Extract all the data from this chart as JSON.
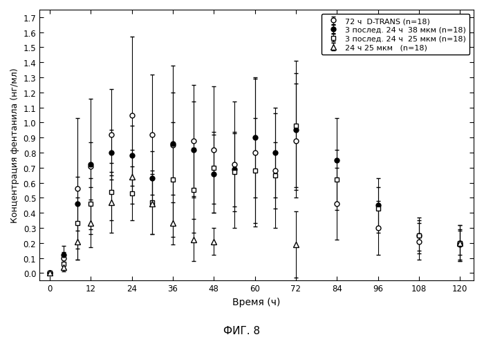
{
  "title": "ФИГ. 8",
  "xlabel": "Время (ч)",
  "ylabel": "Концентрация фентанила (нг/мл)",
  "xlim": [
    -3,
    124
  ],
  "ylim": [
    -0.05,
    1.75
  ],
  "xticks": [
    0,
    12,
    24,
    36,
    48,
    60,
    72,
    84,
    96,
    108,
    120
  ],
  "yticks": [
    0.0,
    0.1,
    0.2,
    0.3,
    0.4,
    0.5,
    0.6,
    0.7,
    0.8,
    0.9,
    1.0,
    1.1,
    1.2,
    1.3,
    1.4,
    1.5,
    1.6,
    1.7
  ],
  "series": [
    {
      "label": "72 ч  D-TRANS (n=18)",
      "marker": "o",
      "marker_fill": "white",
      "color": "#000000",
      "x": [
        0,
        4,
        8,
        12,
        18,
        24,
        30,
        36,
        42,
        48,
        54,
        60,
        66,
        72,
        84,
        96,
        108,
        120
      ],
      "y": [
        0.0,
        0.1,
        0.56,
        0.71,
        0.92,
        1.05,
        0.92,
        0.85,
        0.88,
        0.82,
        0.72,
        0.8,
        0.68,
        0.88,
        0.46,
        0.3,
        0.21,
        0.2
      ],
      "yerr": [
        0.0,
        0.04,
        0.47,
        0.45,
        0.3,
        0.52,
        0.4,
        0.53,
        0.37,
        0.42,
        0.42,
        0.49,
        0.38,
        0.38,
        0.24,
        0.18,
        0.12,
        0.12
      ]
    },
    {
      "label": "3 послед. 24 ч  38 мкм (n=18)",
      "marker": "o",
      "marker_fill": "black",
      "color": "#000000",
      "x": [
        0,
        4,
        8,
        12,
        18,
        24,
        30,
        36,
        42,
        48,
        54,
        60,
        66,
        72,
        84,
        96,
        108,
        120
      ],
      "y": [
        0.0,
        0.12,
        0.46,
        0.72,
        0.8,
        0.78,
        0.63,
        0.86,
        0.82,
        0.66,
        0.69,
        0.9,
        0.8,
        0.95,
        0.75,
        0.45,
        0.25,
        0.19
      ],
      "yerr": [
        0.0,
        0.06,
        0.18,
        0.15,
        0.15,
        0.2,
        0.18,
        0.34,
        0.32,
        0.26,
        0.25,
        0.4,
        0.3,
        0.38,
        0.28,
        0.18,
        0.12,
        0.1
      ]
    },
    {
      "label": "3 послед. 24 ч  25 мкм (n=18)",
      "marker": "s",
      "marker_fill": "white",
      "color": "#000000",
      "x": [
        0,
        4,
        8,
        12,
        18,
        24,
        30,
        36,
        42,
        48,
        54,
        60,
        66,
        72,
        84,
        96,
        108,
        120
      ],
      "y": [
        0.0,
        0.06,
        0.33,
        0.46,
        0.54,
        0.53,
        0.47,
        0.62,
        0.55,
        0.7,
        0.67,
        0.68,
        0.65,
        0.98,
        0.62,
        0.43,
        0.25,
        0.2
      ],
      "yerr": [
        0.0,
        0.04,
        0.17,
        0.17,
        0.19,
        0.18,
        0.21,
        0.38,
        0.28,
        0.24,
        0.26,
        0.35,
        0.22,
        0.43,
        0.2,
        0.14,
        0.1,
        0.08
      ]
    },
    {
      "label": "24 ч 25 мкм   (n=18)",
      "marker": "^",
      "marker_fill": "white",
      "color": "#000000",
      "x": [
        0,
        4,
        8,
        12,
        18,
        24,
        30,
        36,
        42,
        48,
        72,
        120
      ],
      "y": [
        0.0,
        0.04,
        0.21,
        0.33,
        0.47,
        0.64,
        0.46,
        0.33,
        0.22,
        0.21,
        0.19,
        0.2
      ],
      "yerr": [
        0.0,
        0.03,
        0.12,
        0.16,
        0.2,
        0.18,
        0.2,
        0.14,
        0.14,
        0.09,
        0.22,
        0.12
      ]
    }
  ],
  "legend_loc": "upper right",
  "background_color": "#ffffff",
  "figsize": [
    7.0,
    4.89
  ],
  "dpi": 100
}
